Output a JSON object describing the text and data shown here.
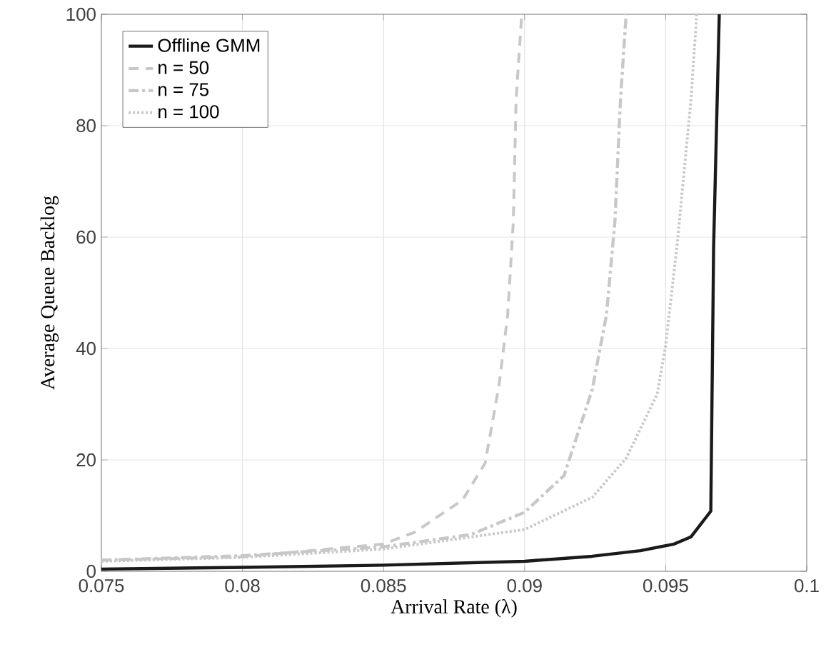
{
  "chart_data": {
    "type": "line",
    "xlabel": "Arrival Rate (λ)",
    "ylabel": "Average Queue Backlog",
    "xlim": [
      0.075,
      0.1
    ],
    "ylim": [
      0,
      100
    ],
    "xticks": [
      0.075,
      0.08,
      0.085,
      0.09,
      0.095,
      0.1
    ],
    "yticks": [
      0,
      20,
      40,
      60,
      80,
      100
    ],
    "grid": true,
    "legend": "top left",
    "series": [
      {
        "name": "Offline GMM",
        "color": "#1a1a1a",
        "line_style": "solid",
        "x": [
          0.075,
          0.08,
          0.085,
          0.09,
          0.0924,
          0.0941,
          0.0953,
          0.0959,
          0.0966,
          0.0967,
          0.0969
        ],
        "values": [
          0.4,
          0.7,
          1.1,
          1.8,
          2.7,
          3.7,
          4.9,
          6.2,
          10.8,
          58.3,
          100
        ]
      },
      {
        "name": "n = 50",
        "color": "#c8c8c8",
        "line_style": "dashed",
        "x": [
          0.075,
          0.08,
          0.085,
          0.0861,
          0.0878,
          0.0886,
          0.0891,
          0.0894,
          0.0896,
          0.0897,
          0.0899
        ],
        "values": [
          2.0,
          2.6,
          4.9,
          7,
          12.8,
          19.4,
          33.6,
          46,
          62.7,
          84.8,
          100
        ]
      },
      {
        "name": "n = 75",
        "color": "#c8c8c8",
        "line_style": "dashdot",
        "x": [
          0.075,
          0.08,
          0.085,
          0.0881,
          0.09,
          0.0914,
          0.0924,
          0.0929,
          0.0932,
          0.0934,
          0.0936
        ],
        "values": [
          2.0,
          2.8,
          4.4,
          6.6,
          10.6,
          17.2,
          32.7,
          46,
          62.7,
          84.8,
          100
        ]
      },
      {
        "name": "n = 100",
        "color": "#c8c8c8",
        "line_style": "dotted",
        "x": [
          0.075,
          0.08,
          0.085,
          0.09,
          0.0924,
          0.0936,
          0.0947,
          0.095,
          0.0954,
          0.0959,
          0.0961
        ],
        "values": [
          1.8,
          2.5,
          4.0,
          7.5,
          13.3,
          20.3,
          31.8,
          40.6,
          58.3,
          84.8,
          100
        ]
      }
    ]
  }
}
